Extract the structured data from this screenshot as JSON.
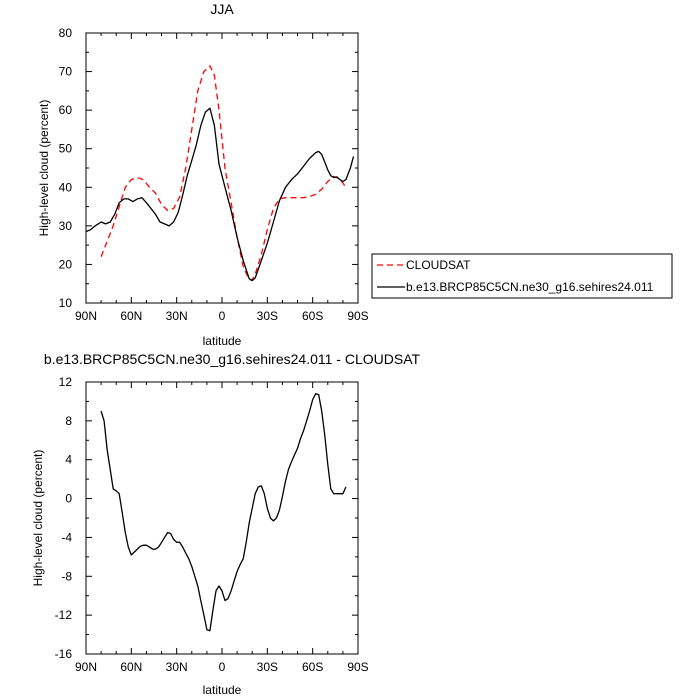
{
  "chart_data": [
    {
      "type": "line",
      "title": "JJA",
      "xlabel": "latitude",
      "ylabel": "High-level cloud (percent)",
      "xlim": [
        90,
        -90
      ],
      "ylim": [
        10,
        80
      ],
      "x_ticks": [
        {
          "value": 90,
          "label": "90N"
        },
        {
          "value": 60,
          "label": "60N"
        },
        {
          "value": 30,
          "label": "30N"
        },
        {
          "value": 0,
          "label": "0"
        },
        {
          "value": -30,
          "label": "30S"
        },
        {
          "value": -60,
          "label": "60S"
        },
        {
          "value": -90,
          "label": "90S"
        }
      ],
      "y_ticks": [
        10,
        20,
        30,
        40,
        50,
        60,
        70,
        80
      ],
      "grid": false,
      "legend_position": "right",
      "series": [
        {
          "name": "CLOUDSAT",
          "color": "#ff0000",
          "dash": "dashed",
          "x": [
            80,
            76,
            72,
            68,
            64,
            60,
            56,
            52,
            48,
            44,
            40,
            36,
            32,
            28,
            24,
            20,
            16,
            12,
            8,
            5,
            2,
            -2,
            -6,
            -10,
            -14,
            -18,
            -20,
            -22,
            -26,
            -30,
            -34,
            -38,
            -42,
            -46,
            -50,
            -54,
            -58,
            -62,
            -66,
            -70,
            -74,
            -78,
            -82
          ],
          "y": [
            22,
            26,
            30,
            35,
            40,
            42,
            42.5,
            42,
            40,
            38.5,
            35.5,
            34,
            34.5,
            37.5,
            45,
            55,
            65,
            70,
            71.5,
            69,
            60,
            45,
            36,
            27,
            19.5,
            16,
            16,
            17.5,
            22.5,
            29,
            34.5,
            37,
            37.3,
            37.3,
            37.3,
            37.3,
            37.6,
            38.2,
            39.5,
            41.5,
            42.8,
            42.2,
            40
          ]
        },
        {
          "name": "b.e13.BRCP85C5CN.ne30_g16.sehires24.011",
          "color": "#000000",
          "dash": "solid",
          "x": [
            90,
            87,
            84,
            80,
            77,
            74,
            71,
            68,
            65,
            62,
            59,
            56,
            53,
            50,
            47,
            44,
            41,
            38,
            35,
            32,
            29,
            26,
            23,
            20,
            17,
            14,
            11,
            8,
            5,
            2,
            -2,
            -6,
            -10,
            -14,
            -18,
            -20,
            -22,
            -26,
            -30,
            -34,
            -38,
            -42,
            -46,
            -50,
            -54,
            -58,
            -62,
            -64,
            -66,
            -68,
            -70,
            -72,
            -74,
            -76,
            -78,
            -80,
            -82,
            -85,
            -87
          ],
          "y": [
            28.5,
            29,
            30,
            31,
            30.5,
            31,
            33,
            36,
            37,
            37,
            36.3,
            37,
            37.3,
            36,
            34.5,
            33,
            31,
            30.5,
            30,
            31,
            33.5,
            38,
            43,
            47,
            51,
            56,
            59.5,
            60.5,
            56,
            46,
            40,
            34,
            27,
            21,
            16.3,
            15.8,
            16.5,
            21,
            25.5,
            31,
            36.5,
            40,
            42,
            43.5,
            45.5,
            47.5,
            49,
            49.3,
            48.5,
            46.5,
            44.5,
            43,
            42.5,
            42.7,
            42,
            41.5,
            42,
            45,
            48
          ]
        }
      ]
    },
    {
      "type": "line",
      "title": "b.e13.BRCP85C5CN.ne30_g16.sehires24.011 - CLOUDSAT",
      "xlabel": "latitude",
      "ylabel": "High-level cloud (percent)",
      "xlim": [
        90,
        -90
      ],
      "ylim": [
        -16,
        12
      ],
      "x_ticks": [
        {
          "value": 90,
          "label": "90N"
        },
        {
          "value": 60,
          "label": "60N"
        },
        {
          "value": 30,
          "label": "30N"
        },
        {
          "value": 0,
          "label": "0"
        },
        {
          "value": -30,
          "label": "30S"
        },
        {
          "value": -60,
          "label": "60S"
        },
        {
          "value": -90,
          "label": "90S"
        }
      ],
      "y_ticks": [
        -16,
        -12,
        -8,
        -4,
        0,
        4,
        8,
        12
      ],
      "grid": false,
      "series": [
        {
          "color": "#000000",
          "dash": "solid",
          "x": [
            80,
            78,
            76,
            74,
            72,
            70,
            68,
            66,
            64,
            62,
            60,
            58,
            56,
            54,
            52,
            50,
            48,
            46,
            44,
            42,
            40,
            38,
            36,
            34,
            32,
            30,
            28,
            26,
            24,
            22,
            20,
            18,
            16,
            14,
            12,
            10,
            8,
            6,
            4,
            2,
            0,
            -2,
            -4,
            -6,
            -8,
            -10,
            -12,
            -14,
            -16,
            -18,
            -20,
            -22,
            -24,
            -26,
            -28,
            -30,
            -32,
            -34,
            -36,
            -38,
            -40,
            -42,
            -44,
            -46,
            -48,
            -50,
            -52,
            -54,
            -56,
            -58,
            -60,
            -62,
            -64,
            -66,
            -68,
            -70,
            -72,
            -74,
            -76,
            -78,
            -80,
            -82
          ],
          "y": [
            9,
            8,
            5,
            3,
            1,
            0.8,
            0.5,
            -1.5,
            -3.5,
            -5,
            -5.8,
            -5.5,
            -5.2,
            -4.9,
            -4.8,
            -4.8,
            -5,
            -5.2,
            -5.2,
            -5,
            -4.5,
            -4,
            -3.5,
            -3.6,
            -4.2,
            -4.5,
            -4.5,
            -5,
            -5.6,
            -6.2,
            -7,
            -8,
            -9,
            -10.5,
            -12,
            -13.5,
            -13.6,
            -11.5,
            -9.5,
            -9,
            -9.5,
            -10.5,
            -10.3,
            -9.5,
            -8.5,
            -7.5,
            -6.8,
            -6.2,
            -4.5,
            -2.5,
            -1,
            0.5,
            1.2,
            1.3,
            0.5,
            -1,
            -2,
            -2.3,
            -2,
            -1.2,
            0.2,
            1.8,
            3,
            3.8,
            4.5,
            5.2,
            6.2,
            7,
            8,
            9,
            10.2,
            10.8,
            10.7,
            9,
            6.5,
            3.5,
            1,
            0.5,
            0.5,
            0.5,
            0.5,
            1.2
          ]
        }
      ]
    }
  ]
}
